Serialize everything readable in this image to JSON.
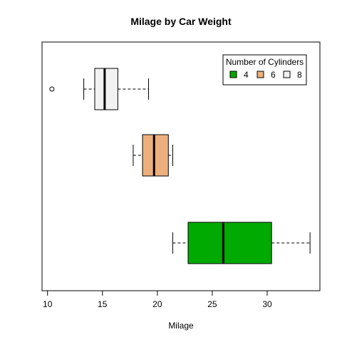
{
  "chart_data": {
    "type": "boxplot",
    "orientation": "horizontal",
    "title": "Milage by Car Weight",
    "xlabel": "Milage",
    "ylabel": "",
    "xlim": [
      9.5,
      34.8
    ],
    "xticks": [
      10,
      15,
      20,
      25,
      30
    ],
    "grid": false,
    "legend": {
      "title": "Number of Cylinders",
      "placement": "top-right",
      "entries": [
        {
          "label": "4",
          "color": "#00aa00"
        },
        {
          "label": "6",
          "color": "#edb07c"
        },
        {
          "label": "8",
          "color": "#f2f2f2"
        }
      ]
    },
    "series": [
      {
        "category": "4",
        "color": "#00aa00",
        "whisker_low": 21.4,
        "q1": 22.8,
        "median": 26.0,
        "q3": 30.4,
        "whisker_high": 33.9,
        "outliers": []
      },
      {
        "category": "6",
        "color": "#edb07c",
        "whisker_low": 17.8,
        "q1": 18.65,
        "median": 19.7,
        "q3": 21.0,
        "whisker_high": 21.4,
        "outliers": []
      },
      {
        "category": "8",
        "color": "#f2f2f2",
        "whisker_low": 13.3,
        "q1": 14.3,
        "median": 15.2,
        "q3": 16.4,
        "whisker_high": 19.2,
        "outliers": [
          10.4
        ]
      }
    ]
  }
}
